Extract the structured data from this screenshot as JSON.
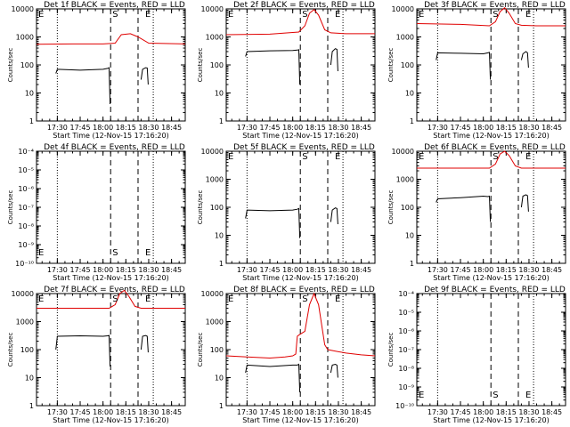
{
  "figure": {
    "colors": {
      "events": "#000000",
      "lld": "#e00000",
      "axis": "#000000",
      "background": "#ffffff"
    },
    "x_ticks": [
      "17:30",
      "17:45",
      "18:00",
      "18:15",
      "18:30",
      "18:45"
    ],
    "x_tick_hours": [
      17.5,
      17.75,
      18.0,
      18.25,
      18.5,
      18.75
    ],
    "marker_labels": {
      "start": "S",
      "end": "E",
      "edge": "E"
    }
  },
  "chart_data": [
    {
      "type": "line",
      "title": "Det 1f BLACK = Events, RED = LLD",
      "xlabel": "Start Time (12-Nov-15 17:16:20)",
      "ylabel": "Counts/sec",
      "xlim": [
        "17:16:20",
        "18:54"
      ],
      "ylim": [
        1,
        10000
      ],
      "yscale": "log",
      "yticks": [
        "1",
        "10",
        "100",
        "1000",
        "10000"
      ],
      "markers": {
        "dotted_times": [
          "17:30",
          "18:33"
        ],
        "start_time": "18:05",
        "end_time": "18:23"
      },
      "series": [
        {
          "name": "Events",
          "color": "#000000",
          "segments": [
            {
              "x": [
                "17:29",
                "17:30",
                "17:45",
                "18:00",
                "18:03",
                "18:04",
                "18:04:40"
              ],
              "y": [
                50,
                70,
                65,
                70,
                75,
                80,
                4
              ]
            },
            {
              "x": [
                "18:25",
                "18:26",
                "18:28",
                "18:29",
                "18:29:40"
              ],
              "y": [
                30,
                70,
                80,
                78,
                20
              ]
            }
          ]
        },
        {
          "name": "LLD",
          "color": "#e00000",
          "segments": [
            {
              "x": [
                "17:16:20",
                "17:40",
                "18:00",
                "18:08",
                "18:12",
                "18:18",
                "18:23",
                "18:30",
                "18:54"
              ],
              "y": [
                550,
                560,
                560,
                600,
                1200,
                1300,
                1000,
                600,
                560
              ]
            }
          ]
        }
      ]
    },
    {
      "type": "line",
      "title": "Det 2f BLACK = Events, RED = LLD",
      "xlabel": "Start Time (12-Nov-15 17:16:20)",
      "ylabel": "Counts/sec",
      "xlim": [
        "17:16:20",
        "18:54"
      ],
      "ylim": [
        1,
        10000
      ],
      "yscale": "log",
      "yticks": [
        "1",
        "10",
        "100",
        "1000",
        "10000"
      ],
      "markers": {
        "dotted_times": [
          "17:30",
          "18:33"
        ],
        "start_time": "18:05",
        "end_time": "18:23"
      },
      "series": [
        {
          "name": "Events",
          "color": "#000000",
          "segments": [
            {
              "x": [
                "17:29",
                "17:30",
                "17:45",
                "18:00",
                "18:03",
                "18:04",
                "18:04:40"
              ],
              "y": [
                200,
                300,
                320,
                330,
                340,
                350,
                20
              ]
            },
            {
              "x": [
                "18:25",
                "18:26",
                "18:28",
                "18:29",
                "18:29:40"
              ],
              "y": [
                100,
                300,
                380,
                360,
                60
              ]
            }
          ]
        },
        {
          "name": "LLD",
          "color": "#e00000",
          "segments": [
            {
              "x": [
                "17:16:20",
                "17:45",
                "18:04",
                "18:08",
                "18:11",
                "18:14",
                "18:17",
                "18:21",
                "18:25",
                "18:35",
                "18:54"
              ],
              "y": [
                1200,
                1250,
                1500,
                2500,
                7000,
                9500,
                6000,
                1800,
                1400,
                1300,
                1300
              ]
            }
          ]
        }
      ]
    },
    {
      "type": "line",
      "title": "Det 3f BLACK = Events, RED = LLD",
      "xlabel": "Start Time (12-Nov-15 17:16:20)",
      "ylabel": "Counts/sec",
      "xlim": [
        "17:16:20",
        "18:54"
      ],
      "ylim": [
        1,
        10000
      ],
      "yscale": "log",
      "yticks": [
        "1",
        "10",
        "100",
        "1000",
        "10000"
      ],
      "markers": {
        "dotted_times": [
          "17:30",
          "18:33"
        ],
        "start_time": "18:05",
        "end_time": "18:23"
      },
      "series": [
        {
          "name": "Events",
          "color": "#000000",
          "segments": [
            {
              "x": [
                "17:29",
                "17:30",
                "17:45",
                "18:00",
                "18:03",
                "18:04",
                "18:04:40"
              ],
              "y": [
                150,
                270,
                260,
                250,
                270,
                280,
                30
              ]
            },
            {
              "x": [
                "18:25",
                "18:26",
                "18:28",
                "18:29",
                "18:29:40"
              ],
              "y": [
                150,
                250,
                300,
                270,
                80
              ]
            }
          ]
        },
        {
          "name": "LLD",
          "color": "#e00000",
          "segments": [
            {
              "x": [
                "17:16:20",
                "17:45",
                "18:04",
                "18:08",
                "18:11",
                "18:14",
                "18:17",
                "18:21",
                "18:25",
                "18:35",
                "18:54"
              ],
              "y": [
                3000,
                2800,
                2500,
                3500,
                8000,
                11000,
                7000,
                3000,
                2600,
                2500,
                2500
              ]
            }
          ]
        }
      ]
    },
    {
      "type": "line",
      "title": "Det 4f BLACK = Events, RED = LLD",
      "xlabel": "Start Time (12-Nov-15 17:16:20)",
      "ylabel": "Counts/sec",
      "xlim": [
        "17:16:20",
        "18:54"
      ],
      "ylim": [
        1e-10,
        0.0001
      ],
      "yscale": "log",
      "yticks": [
        "10⁻¹⁰",
        "10⁻⁹",
        "10⁻⁸",
        "10⁻⁷",
        "10⁻⁶",
        "10⁻⁵",
        "10⁻⁴"
      ],
      "markers": {
        "dotted_times": [
          "17:30",
          "18:33"
        ],
        "start_time": "18:05",
        "end_time": "18:23"
      },
      "series": []
    },
    {
      "type": "line",
      "title": "Det 5f BLACK = Events, RED = LLD",
      "xlabel": "Start Time (12-Nov-15 17:16:20)",
      "ylabel": "Counts/sec",
      "xlim": [
        "17:16:20",
        "18:54"
      ],
      "ylim": [
        1,
        10000
      ],
      "yscale": "log",
      "yticks": [
        "1",
        "10",
        "100",
        "1000",
        "10000"
      ],
      "markers": {
        "dotted_times": [
          "17:30",
          "18:33"
        ],
        "start_time": "18:05",
        "end_time": "18:23"
      },
      "series": [
        {
          "name": "Events",
          "color": "#000000",
          "segments": [
            {
              "x": [
                "17:29",
                "17:30",
                "17:45",
                "18:00",
                "18:03",
                "18:04",
                "18:04:40"
              ],
              "y": [
                40,
                80,
                75,
                80,
                85,
                90,
                8
              ]
            },
            {
              "x": [
                "18:25",
                "18:26",
                "18:28",
                "18:29",
                "18:29:40"
              ],
              "y": [
                30,
                80,
                95,
                90,
                25
              ]
            }
          ]
        }
      ]
    },
    {
      "type": "line",
      "title": "Det 6f BLACK = Events, RED = LLD",
      "xlabel": "Start Time (12-Nov-15 17:16:20)",
      "ylabel": "Counts/sec",
      "xlim": [
        "17:16:20",
        "18:54"
      ],
      "ylim": [
        1,
        10000
      ],
      "yscale": "log",
      "yticks": [
        "1",
        "10",
        "100",
        "1000",
        "10000"
      ],
      "markers": {
        "dotted_times": [
          "17:30",
          "18:33"
        ],
        "start_time": "18:05",
        "end_time": "18:23"
      },
      "series": [
        {
          "name": "Events",
          "color": "#000000",
          "segments": [
            {
              "x": [
                "17:29",
                "17:30",
                "17:45",
                "18:00",
                "18:03",
                "18:04",
                "18:04:40"
              ],
              "y": [
                150,
                200,
                220,
                250,
                240,
                250,
                30
              ]
            },
            {
              "x": [
                "18:25",
                "18:26",
                "18:28",
                "18:29",
                "18:29:40"
              ],
              "y": [
                100,
                250,
                280,
                260,
                70
              ]
            }
          ]
        },
        {
          "name": "LLD",
          "color": "#e00000",
          "segments": [
            {
              "x": [
                "17:16:20",
                "17:45",
                "18:04",
                "18:08",
                "18:11",
                "18:14",
                "18:17",
                "18:21",
                "18:25",
                "18:35",
                "18:54"
              ],
              "y": [
                2500,
                2500,
                2500,
                3500,
                8000,
                10000,
                7000,
                3000,
                2500,
                2500,
                2500
              ]
            }
          ]
        }
      ]
    },
    {
      "type": "line",
      "title": "Det 7f BLACK = Events, RED = LLD",
      "xlabel": "Start Time (12-Nov-15 17:16:20)",
      "ylabel": "Counts/sec",
      "xlim": [
        "17:16:20",
        "18:54"
      ],
      "ylim": [
        1,
        10000
      ],
      "yscale": "log",
      "yticks": [
        "1",
        "10",
        "100",
        "1000",
        "10000"
      ],
      "markers": {
        "dotted_times": [
          "17:30",
          "18:33"
        ],
        "start_time": "18:05",
        "end_time": "18:23"
      },
      "series": [
        {
          "name": "Events",
          "color": "#000000",
          "segments": [
            {
              "x": [
                "17:29",
                "17:30",
                "17:45",
                "18:00",
                "18:03",
                "18:04",
                "18:04:40"
              ],
              "y": [
                100,
                300,
                310,
                300,
                310,
                320,
                25
              ]
            },
            {
              "x": [
                "18:25",
                "18:26",
                "18:28",
                "18:29",
                "18:29:40"
              ],
              "y": [
                100,
                300,
                320,
                300,
                80
              ]
            }
          ]
        },
        {
          "name": "LLD",
          "color": "#e00000",
          "segments": [
            {
              "x": [
                "17:16:20",
                "17:45",
                "18:04",
                "18:08",
                "18:11",
                "18:14",
                "18:17",
                "18:21",
                "18:25",
                "18:35",
                "18:54"
              ],
              "y": [
                3000,
                3000,
                3000,
                4000,
                10000,
                13000,
                8000,
                3500,
                3000,
                3000,
                3000
              ]
            }
          ]
        }
      ]
    },
    {
      "type": "line",
      "title": "Det 8f BLACK = Events, RED = LLD",
      "xlabel": "Start Time (12-Nov-15 17:16:20)",
      "ylabel": "Counts/sec",
      "xlim": [
        "17:16:20",
        "18:54"
      ],
      "ylim": [
        1,
        10000
      ],
      "yscale": "log",
      "yticks": [
        "1",
        "10",
        "100",
        "1000",
        "10000"
      ],
      "markers": {
        "dotted_times": [
          "17:30",
          "18:33"
        ],
        "start_time": "18:05",
        "end_time": "18:23"
      },
      "series": [
        {
          "name": "Events",
          "color": "#000000",
          "segments": [
            {
              "x": [
                "17:29",
                "17:30",
                "17:45",
                "18:00",
                "18:03",
                "18:04",
                "18:04:40"
              ],
              "y": [
                15,
                28,
                25,
                28,
                28,
                30,
                3
              ]
            },
            {
              "x": [
                "18:25",
                "18:26",
                "18:28",
                "18:29",
                "18:29:40"
              ],
              "y": [
                15,
                28,
                30,
                28,
                10
              ]
            }
          ]
        },
        {
          "name": "LLD",
          "color": "#e00000",
          "segments": [
            {
              "x": [
                "17:16:20",
                "17:30",
                "17:45",
                "17:55",
                "18:00",
                "18:02",
                "18:03",
                "18:04",
                "18:08",
                "18:11",
                "18:14",
                "18:17",
                "18:21",
                "18:23",
                "18:27",
                "18:35",
                "18:45",
                "18:54"
              ],
              "y": [
                60,
                55,
                50,
                55,
                60,
                70,
                300,
                330,
                450,
                4000,
                10000,
                4000,
                150,
                100,
                90,
                75,
                65,
                60
              ]
            }
          ]
        }
      ]
    },
    {
      "type": "line",
      "title": "Det 9f BLACK = Events, RED = LLD",
      "xlabel": "Start Time (12-Nov-15 17:16:20)",
      "ylabel": "Counts/sec",
      "xlim": [
        "17:16:20",
        "18:54"
      ],
      "ylim": [
        1e-10,
        0.0001
      ],
      "yscale": "log",
      "yticks": [
        "10⁻¹⁰",
        "10⁻⁹",
        "10⁻⁸",
        "10⁻⁷",
        "10⁻⁶",
        "10⁻⁵",
        "10⁻⁴"
      ],
      "markers": {
        "dotted_times": [
          "17:30",
          "18:33"
        ],
        "start_time": "18:05",
        "end_time": "18:23"
      },
      "series": []
    }
  ]
}
